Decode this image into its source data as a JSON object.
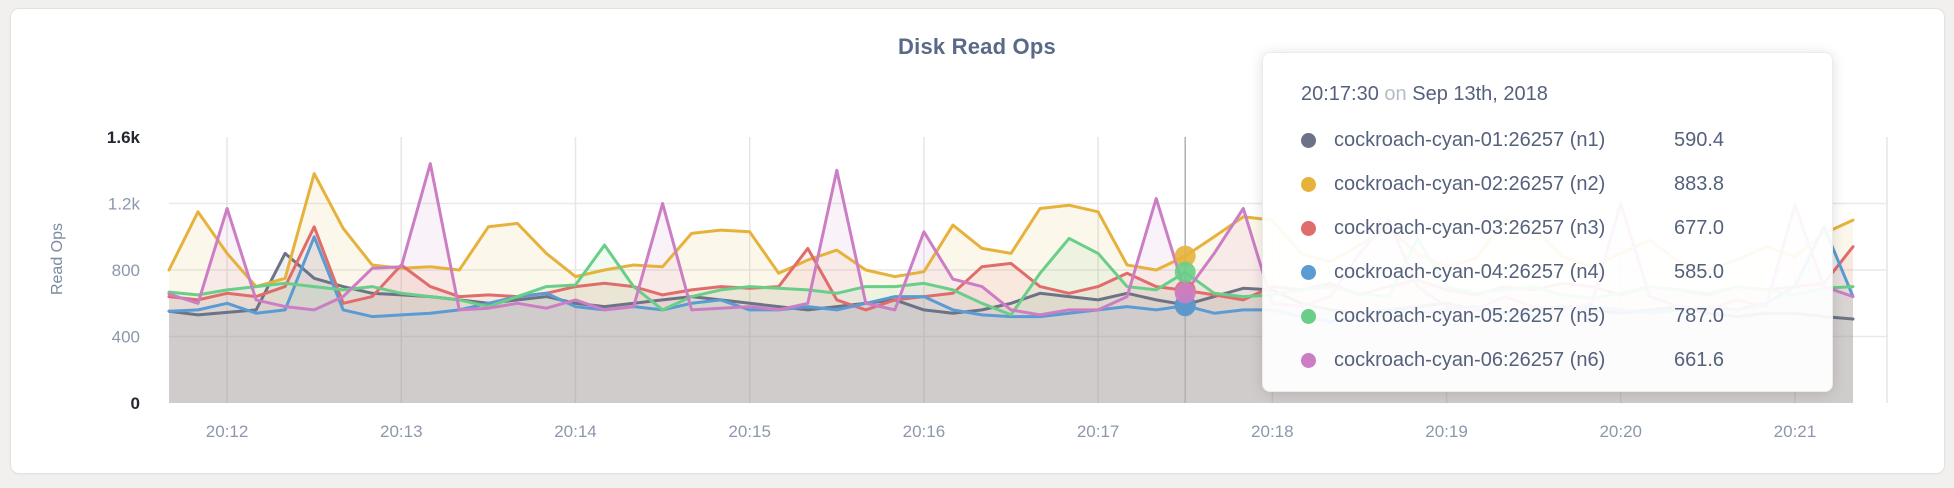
{
  "page": {
    "background": "#f1f0ee"
  },
  "card": {
    "background": "#ffffff",
    "border_color": "#e3e2e0"
  },
  "title": "Disk Read Ops",
  "y_axis": {
    "label": "Read Ops",
    "tick_labels": [
      "0",
      "400",
      "800",
      "1.2k",
      "1.6k"
    ],
    "tick_values": [
      0,
      400,
      800,
      1200,
      1600
    ],
    "muted_color": "#8d97ab",
    "extreme_color": "#23272f"
  },
  "x_axis": {
    "tick_labels": [
      "20:12",
      "20:13",
      "20:14",
      "20:15",
      "20:16",
      "20:17",
      "20:18",
      "20:19",
      "20:20",
      "20:21"
    ],
    "color": "#8d97ab"
  },
  "tooltip": {
    "time": "20:17:30",
    "connector": "on",
    "date": "Sep 13th, 2018",
    "rows": [
      {
        "name": "cockroach-cyan-01:26257 (n1)",
        "value": "590.4",
        "color": "#6c7386"
      },
      {
        "name": "cockroach-cyan-02:26257 (n2)",
        "value": "883.8",
        "color": "#e6b23c"
      },
      {
        "name": "cockroach-cyan-03:26257 (n3)",
        "value": "677.0",
        "color": "#e06c6c"
      },
      {
        "name": "cockroach-cyan-04:26257 (n4)",
        "value": "585.0",
        "color": "#5b9bd3"
      },
      {
        "name": "cockroach-cyan-05:26257 (n5)",
        "value": "787.0",
        "color": "#69ce87"
      },
      {
        "name": "cockroach-cyan-06:26257 (n6)",
        "value": "661.6",
        "color": "#cc7ec4"
      }
    ]
  },
  "chart_data": {
    "type": "area",
    "title": "Disk Read Ops",
    "ylabel": "Read Ops",
    "ylim": [
      0,
      1600
    ],
    "y_ticks": [
      0,
      400,
      800,
      1200,
      1600
    ],
    "grid": "on",
    "legend_position": "tooltip",
    "x_start": "20:11:40",
    "x_interval_seconds": 10,
    "x_tick_labels": [
      "20:12",
      "20:13",
      "20:14",
      "20:15",
      "20:16",
      "20:17",
      "20:18",
      "20:19",
      "20:20",
      "20:21"
    ],
    "hover": {
      "index": 35,
      "time": "20:17:30",
      "date": "Sep 13th, 2018",
      "values": {
        "n1": 590.4,
        "n2": 883.8,
        "n3": 677.0,
        "n4": 585.0,
        "n5": 787.0,
        "n6": 661.6
      }
    },
    "series": [
      {
        "name": "cockroach-cyan-01:26257 (n1)",
        "color": "#6c7386",
        "values": [
          552,
          530,
          545,
          560,
          900,
          750,
          700,
          660,
          650,
          640,
          620,
          600,
          620,
          640,
          600,
          580,
          600,
          620,
          640,
          620,
          600,
          580,
          560,
          580,
          600,
          620,
          560,
          540,
          560,
          600,
          660,
          640,
          620,
          660,
          620,
          590.4,
          640,
          690,
          680,
          600,
          560,
          540,
          560,
          580,
          600,
          560,
          540,
          560,
          580,
          560,
          540,
          560,
          580,
          540,
          520,
          540,
          540,
          520,
          505
        ]
      },
      {
        "name": "cockroach-cyan-02:26257 (n2)",
        "color": "#e6b23c",
        "values": [
          800,
          1150,
          900,
          700,
          750,
          1380,
          1050,
          830,
          810,
          820,
          800,
          1060,
          1080,
          900,
          760,
          800,
          830,
          820,
          1020,
          1040,
          1030,
          780,
          860,
          920,
          800,
          760,
          790,
          1070,
          930,
          900,
          1170,
          1190,
          1150,
          830,
          800,
          883.8,
          1000,
          1120,
          1100,
          900,
          850,
          950,
          1050,
          900,
          820,
          870,
          1100,
          1050,
          880,
          820,
          900,
          980,
          850,
          800,
          860,
          940,
          880,
          1020,
          1100
        ]
      },
      {
        "name": "cockroach-cyan-03:26257 (n3)",
        "color": "#e06c6c",
        "values": [
          640,
          620,
          660,
          640,
          700,
          1060,
          600,
          640,
          830,
          700,
          640,
          650,
          640,
          660,
          700,
          720,
          700,
          650,
          680,
          700,
          690,
          700,
          930,
          620,
          560,
          620,
          640,
          660,
          820,
          840,
          700,
          660,
          700,
          780,
          700,
          677,
          650,
          620,
          700,
          680,
          720,
          650,
          700,
          740,
          680,
          650,
          700,
          680,
          720,
          700,
          650,
          700,
          680,
          650,
          700,
          680,
          700,
          720,
          940
        ]
      },
      {
        "name": "cockroach-cyan-04:26257 (n4)",
        "color": "#5b9bd3",
        "values": [
          552,
          560,
          600,
          540,
          560,
          1000,
          560,
          520,
          530,
          540,
          560,
          600,
          640,
          660,
          580,
          560,
          580,
          560,
          600,
          620,
          560,
          560,
          580,
          560,
          600,
          640,
          640,
          560,
          530,
          520,
          520,
          540,
          560,
          580,
          560,
          585,
          540,
          560,
          560,
          520,
          490,
          520,
          560,
          540,
          560,
          580,
          540,
          520,
          560,
          580,
          560,
          540,
          560,
          580,
          560,
          600,
          700,
          1060,
          640
        ]
      },
      {
        "name": "cockroach-cyan-05:26257 (n5)",
        "color": "#69ce87",
        "values": [
          667,
          650,
          680,
          700,
          720,
          700,
          680,
          700,
          660,
          640,
          620,
          580,
          640,
          700,
          710,
          950,
          700,
          560,
          640,
          680,
          700,
          690,
          680,
          660,
          700,
          700,
          720,
          680,
          600,
          530,
          780,
          990,
          900,
          700,
          680,
          787,
          660,
          640,
          650,
          680,
          700,
          660,
          640,
          990,
          700,
          660,
          680,
          700,
          650,
          630,
          660,
          700,
          680,
          660,
          700,
          680,
          650,
          690,
          700
        ]
      },
      {
        "name": "cockroach-cyan-06:26257 (n6)",
        "color": "#cc7ec4",
        "values": [
          655,
          600,
          1170,
          620,
          580,
          560,
          640,
          810,
          820,
          1440,
          560,
          570,
          600,
          570,
          620,
          560,
          580,
          1200,
          560,
          570,
          580,
          560,
          600,
          1400,
          600,
          560,
          1030,
          745,
          700,
          560,
          530,
          560,
          560,
          640,
          1230,
          661.6,
          900,
          1170,
          600,
          580,
          640,
          900,
          1100,
          700,
          580,
          560,
          640,
          580,
          560,
          600,
          1200,
          640,
          580,
          560,
          620,
          580,
          1190,
          700,
          640
        ]
      }
    ]
  }
}
